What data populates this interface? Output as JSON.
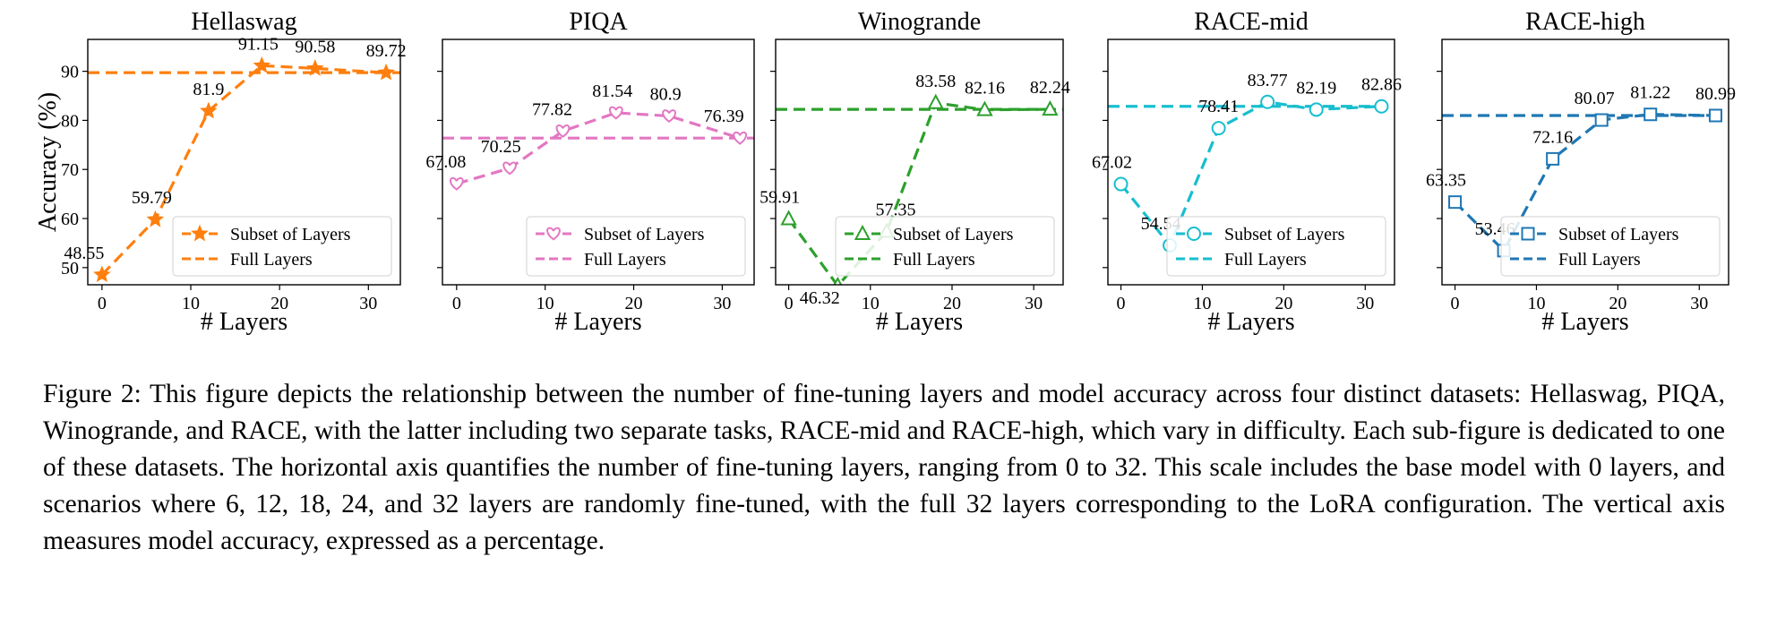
{
  "figure_label": "Figure 2:",
  "caption": "This figure depicts the relationship between the number of fine-tuning layers and model accuracy across four distinct datasets: Hellaswag, PIQA, Winogrande, and RACE, with the latter including two separate tasks, RACE-mid and RACE-high, which vary in difficulty. Each sub-figure is dedicated to one of these datasets. The horizontal axis quantifies the number of fine-tuning layers, ranging from 0 to 32. This scale includes the base model with 0 layers, and scenarios where 6, 12, 18, 24, and 32 layers are randomly fine-tuned, with the full 32 layers corresponding to the LoRA configuration. The vertical axis measures model accuracy, expressed as a percentage.",
  "chart_data": [
    {
      "type": "line",
      "title": "Hellaswag",
      "xlabel": "# Layers",
      "ylabel": "Accuracy (%)",
      "x": [
        0,
        6,
        12,
        18,
        24,
        32
      ],
      "x_ticks": [
        0,
        10,
        20,
        30
      ],
      "y_ticks": [
        50,
        60,
        70,
        80,
        90
      ],
      "xlim": [
        -1.6,
        33.6
      ],
      "ylim": [
        46.5,
        96.5
      ],
      "series": [
        {
          "name": "Subset of Layers",
          "values": [
            48.55,
            59.79,
            81.9,
            91.15,
            90.58,
            89.72
          ],
          "labels": [
            "48.55",
            "59.79",
            "81.9",
            "91.15",
            "90.58",
            "89.72"
          ],
          "marker": "star"
        },
        {
          "name": "Full Layers",
          "constant": 89.72
        }
      ],
      "color": "#ff7f0e",
      "legend": "lower-right"
    },
    {
      "type": "line",
      "title": "PIQA",
      "xlabel": "# Layers",
      "ylabel": "",
      "x": [
        0,
        6,
        12,
        18,
        24,
        32
      ],
      "x_ticks": [
        0,
        10,
        20,
        30
      ],
      "y_ticks": [
        50,
        60,
        70,
        80,
        90
      ],
      "xlim": [
        -1.6,
        33.6
      ],
      "ylim": [
        46.5,
        96.5
      ],
      "series": [
        {
          "name": "Subset of Layers",
          "values": [
            67.08,
            70.25,
            77.82,
            81.54,
            80.9,
            76.39
          ],
          "labels": [
            "67.08",
            "70.25",
            "77.82",
            "81.54",
            "80.9",
            "76.39"
          ],
          "marker": "heart"
        },
        {
          "name": "Full Layers",
          "constant": 76.39
        }
      ],
      "color": "#e377c2",
      "legend": "lower-right"
    },
    {
      "type": "line",
      "title": "Winogrande",
      "xlabel": "# Layers",
      "ylabel": "",
      "x": [
        0,
        6,
        12,
        18,
        24,
        32
      ],
      "x_ticks": [
        0,
        10,
        20,
        30
      ],
      "y_ticks": [
        50,
        60,
        70,
        80,
        90
      ],
      "xlim": [
        -1.6,
        33.6
      ],
      "ylim": [
        46.5,
        96.5
      ],
      "series": [
        {
          "name": "Subset of Layers",
          "values": [
            59.91,
            46.32,
            57.35,
            83.58,
            82.16,
            82.24
          ],
          "labels": [
            "59.91",
            "46.32",
            "57.35",
            "83.58",
            "82.16",
            "82.24"
          ],
          "marker": "triangle"
        },
        {
          "name": "Full Layers",
          "constant": 82.24
        }
      ],
      "color": "#2ca02c",
      "legend": "lower-right"
    },
    {
      "type": "line",
      "title": "RACE-mid",
      "xlabel": "# Layers",
      "ylabel": "",
      "x": [
        0,
        6,
        12,
        18,
        24,
        32
      ],
      "x_ticks": [
        0,
        10,
        20,
        30
      ],
      "y_ticks": [
        50,
        60,
        70,
        80,
        90
      ],
      "xlim": [
        -1.6,
        33.6
      ],
      "ylim": [
        46.5,
        96.5
      ],
      "series": [
        {
          "name": "Subset of Layers",
          "values": [
            67.02,
            54.54,
            78.41,
            83.77,
            82.19,
            82.86
          ],
          "labels": [
            "67.02",
            "54.54",
            "78.41",
            "83.77",
            "82.19",
            "82.86"
          ],
          "marker": "circle"
        },
        {
          "name": "Full Layers",
          "constant": 82.86
        }
      ],
      "color": "#17becf",
      "legend": "lower-right"
    },
    {
      "type": "line",
      "title": "RACE-high",
      "xlabel": "# Layers",
      "ylabel": "",
      "x": [
        0,
        6,
        12,
        18,
        24,
        32
      ],
      "x_ticks": [
        0,
        10,
        20,
        30
      ],
      "y_ticks": [
        50,
        60,
        70,
        80,
        90
      ],
      "xlim": [
        -1.6,
        33.6
      ],
      "ylim": [
        46.5,
        96.5
      ],
      "series": [
        {
          "name": "Subset of Layers",
          "values": [
            63.35,
            53.46,
            72.16,
            80.07,
            81.22,
            80.99
          ],
          "labels": [
            "63.35",
            "53.46",
            "72.16",
            "80.07",
            "81.22",
            "80.99"
          ],
          "marker": "square"
        },
        {
          "name": "Full Layers",
          "constant": 80.99
        }
      ],
      "color": "#1f77b4",
      "legend": "lower-right"
    }
  ]
}
